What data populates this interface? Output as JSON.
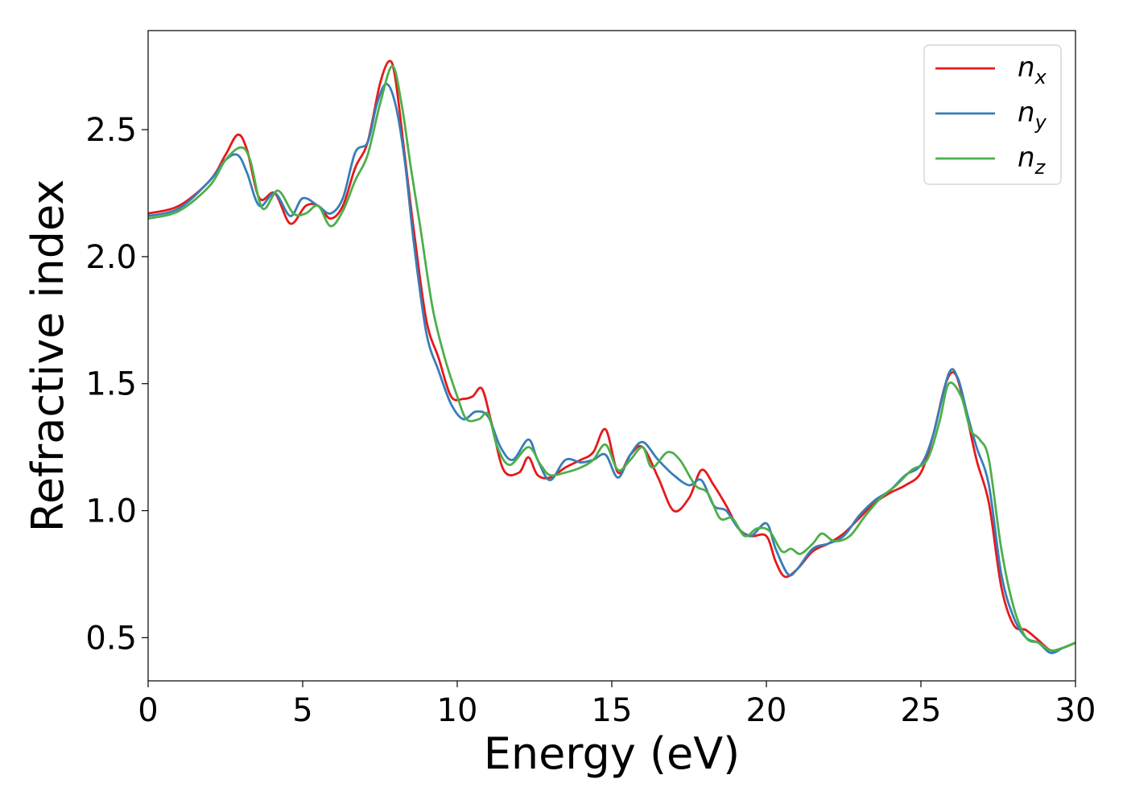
{
  "chart_data": {
    "type": "line",
    "title": "",
    "xlabel": "Energy (eV)",
    "ylabel": "Refractive index",
    "xlim": [
      0,
      30
    ],
    "ylim": [
      0.33,
      2.89
    ],
    "xticks": [
      0,
      5,
      10,
      15,
      20,
      25,
      30
    ],
    "xtick_labels": [
      "0",
      "5",
      "10",
      "15",
      "20",
      "25",
      "30"
    ],
    "yticks": [
      0.5,
      1.0,
      1.5,
      2.0,
      2.5
    ],
    "ytick_labels": [
      "0.5",
      "1.0",
      "1.5",
      "2.0",
      "2.5"
    ],
    "grid": false,
    "legend_position": "top-right",
    "series": [
      {
        "name": "n",
        "subscript": "x",
        "color": "#e41a1c",
        "x": [
          0,
          1.0,
          2.0,
          2.5,
          2.9,
          3.2,
          3.6,
          4.1,
          4.6,
          5.1,
          5.5,
          5.9,
          6.3,
          6.7,
          7.1,
          7.5,
          7.8,
          8.0,
          8.3,
          8.6,
          9.0,
          9.4,
          9.8,
          10.2,
          10.5,
          10.8,
          11.1,
          11.5,
          12.0,
          12.3,
          12.6,
          13.0,
          13.5,
          14.0,
          14.4,
          14.8,
          15.2,
          15.6,
          16.0,
          16.5,
          17.0,
          17.5,
          17.9,
          18.3,
          18.7,
          19.1,
          19.5,
          20.0,
          20.3,
          20.6,
          21.0,
          21.5,
          22.0,
          22.5,
          23.0,
          23.5,
          24.0,
          24.5,
          25.0,
          25.4,
          25.8,
          26.1,
          26.4,
          26.8,
          27.2,
          27.6,
          28.0,
          28.4,
          28.8,
          29.2,
          29.6,
          30.0
        ],
        "y": [
          2.17,
          2.2,
          2.3,
          2.4,
          2.48,
          2.42,
          2.23,
          2.25,
          2.13,
          2.2,
          2.2,
          2.15,
          2.2,
          2.35,
          2.45,
          2.68,
          2.77,
          2.7,
          2.4,
          2.1,
          1.75,
          1.6,
          1.45,
          1.44,
          1.45,
          1.48,
          1.35,
          1.16,
          1.15,
          1.21,
          1.14,
          1.13,
          1.17,
          1.2,
          1.23,
          1.32,
          1.15,
          1.22,
          1.25,
          1.13,
          1.0,
          1.05,
          1.16,
          1.1,
          1.02,
          0.93,
          0.9,
          0.9,
          0.8,
          0.74,
          0.77,
          0.84,
          0.87,
          0.91,
          0.97,
          1.03,
          1.07,
          1.1,
          1.15,
          1.3,
          1.5,
          1.54,
          1.42,
          1.2,
          1.03,
          0.7,
          0.55,
          0.53,
          0.49,
          0.45,
          0.46,
          0.48
        ]
      },
      {
        "name": "n",
        "subscript": "y",
        "color": "#377eb8",
        "x": [
          0,
          1.0,
          2.0,
          2.5,
          2.9,
          3.2,
          3.6,
          4.1,
          4.6,
          5.0,
          5.5,
          5.9,
          6.3,
          6.7,
          7.1,
          7.4,
          7.7,
          8.0,
          8.3,
          8.6,
          9.0,
          9.4,
          9.8,
          10.2,
          10.6,
          11.0,
          11.4,
          11.8,
          12.3,
          12.6,
          13.0,
          13.5,
          14.0,
          14.4,
          14.8,
          15.2,
          15.6,
          16.0,
          16.5,
          17.0,
          17.5,
          17.9,
          18.3,
          18.7,
          19.1,
          19.5,
          20.0,
          20.3,
          20.7,
          21.0,
          21.5,
          22.0,
          22.5,
          23.0,
          23.5,
          24.0,
          24.5,
          25.0,
          25.4,
          25.9,
          26.2,
          26.5,
          26.8,
          27.2,
          27.6,
          28.0,
          28.4,
          28.8,
          29.2,
          29.6,
          30.0
        ],
        "y": [
          2.16,
          2.19,
          2.3,
          2.38,
          2.4,
          2.33,
          2.2,
          2.25,
          2.16,
          2.23,
          2.2,
          2.17,
          2.23,
          2.41,
          2.45,
          2.6,
          2.68,
          2.6,
          2.38,
          2.05,
          1.7,
          1.55,
          1.42,
          1.36,
          1.39,
          1.37,
          1.25,
          1.2,
          1.28,
          1.2,
          1.12,
          1.2,
          1.19,
          1.2,
          1.22,
          1.13,
          1.22,
          1.27,
          1.2,
          1.14,
          1.1,
          1.12,
          1.02,
          1.0,
          0.93,
          0.9,
          0.95,
          0.85,
          0.75,
          0.77,
          0.85,
          0.87,
          0.9,
          0.98,
          1.04,
          1.08,
          1.14,
          1.18,
          1.3,
          1.54,
          1.52,
          1.38,
          1.25,
          1.1,
          0.75,
          0.58,
          0.5,
          0.48,
          0.44,
          0.46,
          0.48
        ]
      },
      {
        "name": "n",
        "subscript": "z",
        "color": "#4daf4a",
        "x": [
          0,
          1.0,
          2.0,
          2.5,
          3.0,
          3.3,
          3.7,
          4.2,
          4.7,
          5.1,
          5.5,
          5.9,
          6.3,
          6.7,
          7.1,
          7.5,
          7.9,
          8.2,
          8.5,
          8.8,
          9.2,
          9.6,
          10.0,
          10.3,
          10.7,
          11.0,
          11.3,
          11.7,
          12.3,
          12.7,
          13.0,
          13.5,
          14.0,
          14.4,
          14.8,
          15.2,
          15.6,
          16.0,
          16.3,
          16.8,
          17.2,
          17.7,
          18.1,
          18.5,
          18.9,
          19.3,
          19.7,
          20.1,
          20.5,
          20.8,
          21.1,
          21.5,
          21.8,
          22.2,
          22.7,
          23.2,
          23.7,
          24.2,
          24.7,
          25.2,
          25.6,
          25.9,
          26.3,
          26.6,
          26.9,
          27.2,
          27.6,
          28.0,
          28.4,
          28.8,
          29.2,
          29.6,
          30.0
        ],
        "y": [
          2.15,
          2.18,
          2.28,
          2.38,
          2.43,
          2.38,
          2.19,
          2.26,
          2.17,
          2.17,
          2.2,
          2.12,
          2.18,
          2.3,
          2.4,
          2.6,
          2.75,
          2.6,
          2.35,
          2.12,
          1.8,
          1.6,
          1.45,
          1.36,
          1.36,
          1.38,
          1.25,
          1.18,
          1.25,
          1.18,
          1.14,
          1.15,
          1.17,
          1.2,
          1.26,
          1.16,
          1.2,
          1.25,
          1.17,
          1.23,
          1.2,
          1.1,
          1.07,
          0.97,
          0.97,
          0.9,
          0.93,
          0.92,
          0.84,
          0.85,
          0.83,
          0.87,
          0.91,
          0.88,
          0.9,
          0.98,
          1.05,
          1.1,
          1.16,
          1.2,
          1.35,
          1.5,
          1.45,
          1.32,
          1.28,
          1.2,
          0.85,
          0.62,
          0.5,
          0.48,
          0.45,
          0.46,
          0.48
        ]
      }
    ]
  }
}
